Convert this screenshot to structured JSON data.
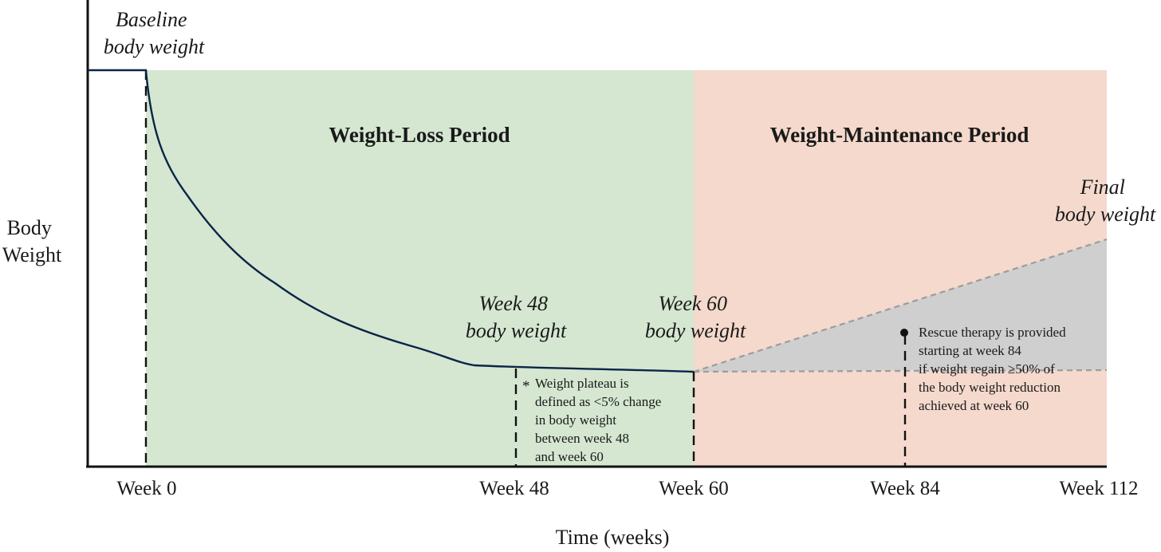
{
  "y_axis_label": [
    "Body",
    "Weight"
  ],
  "x_axis_label": "Time (weeks)",
  "periods": {
    "loss": {
      "label": "Weight-Loss Period",
      "color": "#d5e7d1"
    },
    "maintenance": {
      "label": "Weight-Maintenance Period",
      "color": "#f4d9cc"
    }
  },
  "regain_zone_color": "#cfcfcf",
  "curve_color": "#0b2547",
  "ticks": [
    "Week 0",
    "Week 48",
    "Week 60",
    "Week 84",
    "Week 112"
  ],
  "callouts": {
    "baseline": [
      "Baseline",
      "body weight"
    ],
    "week48": [
      "Week 48",
      "body weight"
    ],
    "week60": [
      "Week 60",
      "body weight"
    ],
    "final": [
      "Final",
      "body weight"
    ]
  },
  "notes": {
    "plateau_marker": "*",
    "plateau": [
      "Weight plateau is",
      "defined as <5% change",
      "in body weight",
      "between week 48",
      "and week 60"
    ],
    "rescue": [
      "Rescue therapy is provided",
      "starting at week 84",
      "if weight regain ≥50% of",
      "the body weight reduction",
      "achieved at week 60"
    ]
  }
}
